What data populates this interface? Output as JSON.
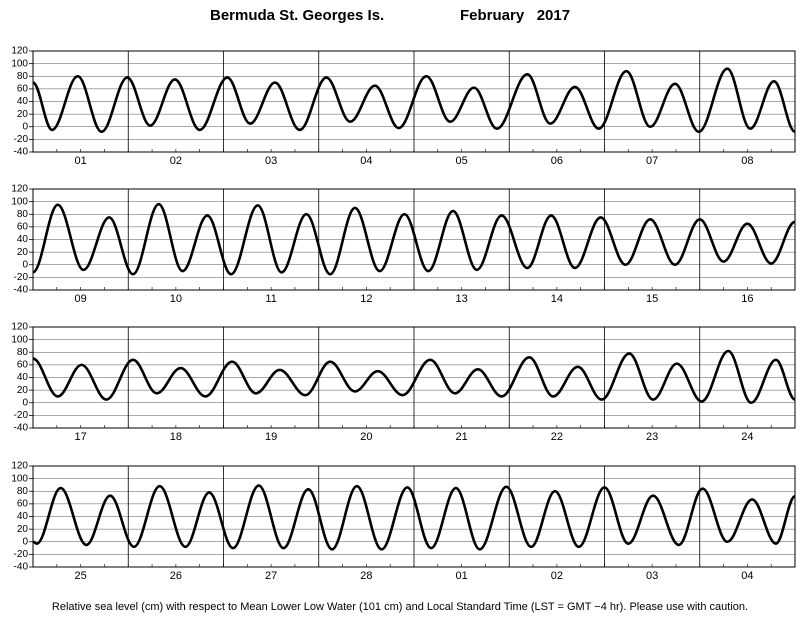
{
  "header": {
    "location": "Bermuda St. Georges Is.",
    "month": "February   2017"
  },
  "footer": "Relative sea level (cm) with respect to Mean Lower Low Water (101 cm) and Local Standard Time (LST = GMT −4 hr). Please use with caution.",
  "chart_data": [
    {
      "type": "line",
      "categories": [
        "01",
        "02",
        "03",
        "04",
        "05",
        "06",
        "07",
        "08"
      ],
      "xlim": [
        0,
        8
      ],
      "ylim": [
        -40,
        120
      ],
      "yticks": [
        -40,
        -20,
        0,
        20,
        40,
        60,
        80,
        100,
        120
      ],
      "grid": true,
      "color": "#000000",
      "x": [
        0,
        0.2,
        0.47,
        0.72,
        0.99,
        1.23,
        1.49,
        1.75,
        2.04,
        2.28,
        2.54,
        2.8,
        3.08,
        3.33,
        3.59,
        3.84,
        4.13,
        4.38,
        4.63,
        4.87,
        5.19,
        5.43,
        5.69,
        5.94,
        6.23,
        6.48,
        6.74,
        6.99,
        7.29,
        7.53,
        7.78,
        8
      ],
      "values": [
        70,
        -5,
        80,
        -8,
        78,
        2,
        75,
        -5,
        78,
        5,
        70,
        -5,
        78,
        8,
        65,
        -2,
        80,
        8,
        62,
        -3,
        83,
        5,
        63,
        -3,
        88,
        0,
        68,
        -8,
        92,
        -3,
        72,
        -8
      ]
    },
    {
      "type": "line",
      "categories": [
        "09",
        "10",
        "11",
        "12",
        "13",
        "14",
        "15",
        "16"
      ],
      "xlim": [
        0,
        8
      ],
      "ylim": [
        -40,
        120
      ],
      "yticks": [
        -40,
        -20,
        0,
        20,
        40,
        60,
        80,
        100,
        120
      ],
      "grid": true,
      "color": "#000000",
      "x": [
        0,
        0.26,
        0.53,
        0.8,
        1.05,
        1.32,
        1.57,
        1.83,
        2.08,
        2.36,
        2.61,
        2.87,
        3.12,
        3.38,
        3.64,
        3.9,
        4.15,
        4.41,
        4.66,
        4.92,
        5.19,
        5.44,
        5.69,
        5.96,
        6.22,
        6.48,
        6.74,
        7.0,
        7.25,
        7.5,
        7.75,
        8
      ],
      "values": [
        -12,
        95,
        -8,
        75,
        -15,
        96,
        -10,
        78,
        -15,
        94,
        -12,
        80,
        -15,
        90,
        -10,
        80,
        -10,
        85,
        -8,
        78,
        -5,
        78,
        -5,
        75,
        0,
        72,
        0,
        72,
        5,
        65,
        2,
        68
      ]
    },
    {
      "type": "line",
      "categories": [
        "17",
        "18",
        "19",
        "20",
        "21",
        "22",
        "23",
        "24"
      ],
      "xlim": [
        0,
        8
      ],
      "ylim": [
        -40,
        120
      ],
      "yticks": [
        -40,
        -20,
        0,
        20,
        40,
        60,
        80,
        100,
        120
      ],
      "grid": true,
      "color": "#000000",
      "x": [
        0,
        0.26,
        0.51,
        0.77,
        1.05,
        1.3,
        1.55,
        1.81,
        2.09,
        2.34,
        2.59,
        2.86,
        3.12,
        3.38,
        3.62,
        3.88,
        4.17,
        4.43,
        4.67,
        4.92,
        5.21,
        5.46,
        5.72,
        5.97,
        6.26,
        6.51,
        6.76,
        7.02,
        7.3,
        7.54,
        7.8,
        8
      ],
      "values": [
        70,
        10,
        60,
        5,
        68,
        15,
        55,
        10,
        65,
        15,
        52,
        12,
        65,
        18,
        50,
        12,
        68,
        15,
        53,
        10,
        72,
        10,
        57,
        5,
        78,
        5,
        62,
        2,
        82,
        0,
        68,
        5
      ]
    },
    {
      "type": "line",
      "categories": [
        "25",
        "26",
        "27",
        "28",
        "01",
        "02",
        "03",
        "04"
      ],
      "xlim": [
        0,
        8
      ],
      "ylim": [
        -40,
        120
      ],
      "yticks": [
        -40,
        -20,
        0,
        20,
        40,
        60,
        80,
        100,
        120
      ],
      "grid": true,
      "color": "#000000",
      "x": [
        0,
        0.04,
        0.29,
        0.56,
        0.81,
        1.06,
        1.33,
        1.6,
        1.85,
        2.1,
        2.37,
        2.63,
        2.89,
        3.14,
        3.4,
        3.66,
        3.93,
        4.18,
        4.44,
        4.69,
        4.97,
        5.23,
        5.48,
        5.73,
        6.0,
        6.25,
        6.51,
        6.78,
        7.03,
        7.29,
        7.55,
        7.8,
        8
      ],
      "values": [
        0,
        -3,
        85,
        -5,
        73,
        -8,
        88,
        -8,
        78,
        -10,
        89,
        -10,
        83,
        -12,
        88,
        -12,
        86,
        -10,
        85,
        -12,
        87,
        -8,
        80,
        -8,
        86,
        -3,
        73,
        -5,
        84,
        0,
        67,
        -3,
        72
      ]
    }
  ]
}
